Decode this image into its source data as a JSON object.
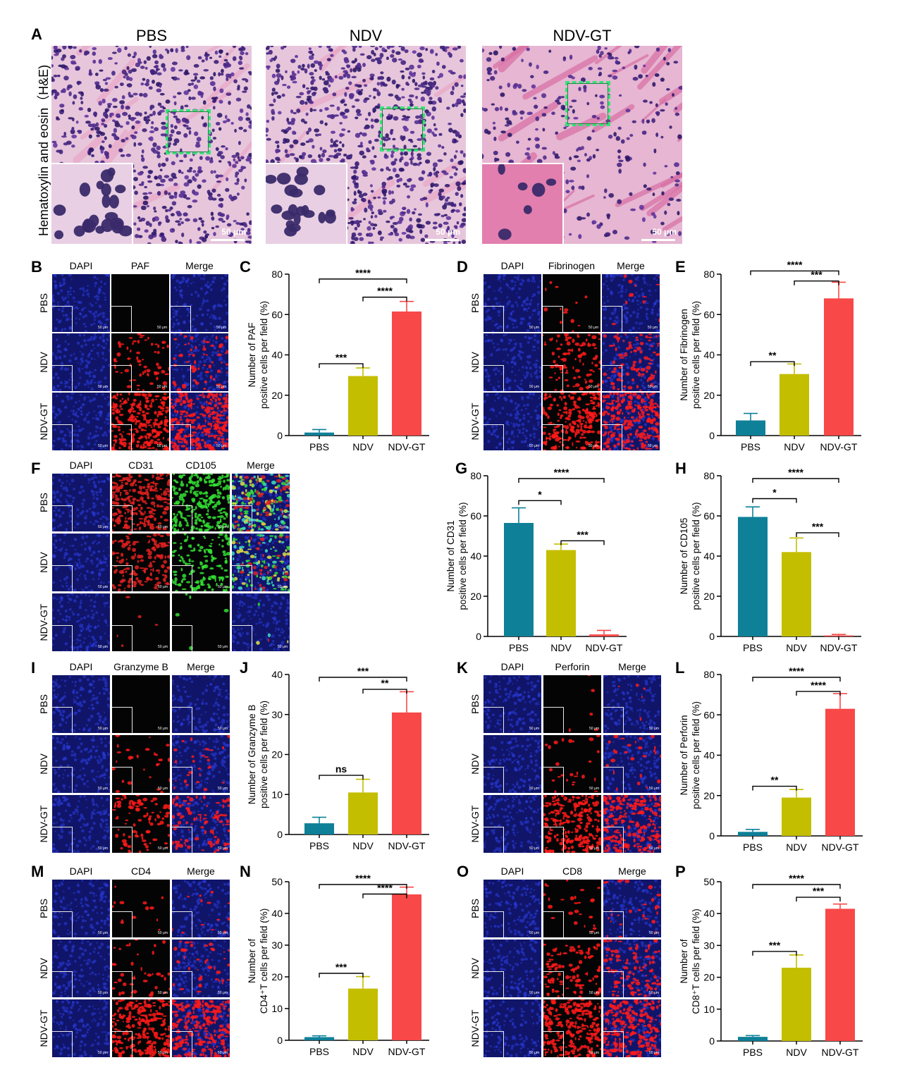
{
  "panelA": {
    "letter": "A",
    "side_label": "Hematoxylin and eosin（H&E)",
    "titles": [
      "PBS",
      "NDV",
      "NDV-GT"
    ],
    "scale_label": "50 μm"
  },
  "fluor_panels": [
    {
      "letter": "B",
      "cols": [
        "DAPI",
        "PAF",
        "Merge"
      ],
      "rows": [
        "PBS",
        "NDV",
        "NDV-GT"
      ],
      "signal": "red",
      "levels": [
        0.0,
        0.25,
        0.95
      ],
      "scale": "50 μm"
    },
    {
      "letter": "D",
      "cols": [
        "DAPI",
        "Fibrinogen",
        "Merge"
      ],
      "rows": [
        "PBS",
        "NDV",
        "NDV-GT"
      ],
      "signal": "red",
      "levels": [
        0.05,
        0.35,
        0.85
      ],
      "scale": "50 μm"
    },
    {
      "letter": "F",
      "cols": [
        "DAPI",
        "CD31",
        "CD105",
        "Merge"
      ],
      "rows": [
        "PBS",
        "NDV",
        "NDV-GT"
      ],
      "signal": "redgreen",
      "levels": [
        0.9,
        0.55,
        0.02
      ],
      "scale": "50 μm"
    },
    {
      "letter": "I",
      "cols": [
        "DAPI",
        "Granzyme B",
        "Merge"
      ],
      "rows": [
        "PBS",
        "NDV",
        "NDV-GT"
      ],
      "signal": "red",
      "levels": [
        0.0,
        0.1,
        0.35
      ],
      "scale": "50 μm"
    },
    {
      "letter": "K",
      "cols": [
        "DAPI",
        "Perforin",
        "Merge"
      ],
      "rows": [
        "PBS",
        "NDV",
        "NDV-GT"
      ],
      "signal": "red",
      "levels": [
        0.02,
        0.1,
        0.85
      ],
      "scale": "50 μm"
    },
    {
      "letter": "M",
      "cols": [
        "DAPI",
        "CD4",
        "Merge"
      ],
      "rows": [
        "PBS",
        "NDV",
        "NDV-GT"
      ],
      "signal": "red",
      "levels": [
        0.05,
        0.15,
        0.9
      ],
      "scale": "50 μm"
    },
    {
      "letter": "O",
      "cols": [
        "DAPI",
        "CD8",
        "Merge"
      ],
      "rows": [
        "PBS",
        "NDV",
        "NDV-GT"
      ],
      "signal": "red",
      "levels": [
        0.1,
        0.4,
        0.85
      ],
      "scale": "50 μm"
    }
  ],
  "colors": {
    "PBS": "#0e8098",
    "NDV": "#c4be00",
    "NDV-GT": "#f84848"
  },
  "chart_data": [
    {
      "letter": "C",
      "type": "bar",
      "categories": [
        "PBS",
        "NDV",
        "NDV-GT"
      ],
      "values": [
        1.5,
        29.5,
        61.5
      ],
      "errors": [
        1.5,
        4,
        5
      ],
      "ylim": [
        0,
        80
      ],
      "yticks": [
        0,
        20,
        40,
        60,
        80
      ],
      "ylabel": [
        "Number of PAF",
        "positive cells per field (%)"
      ],
      "sig": [
        {
          "a": 0,
          "b": 2,
          "label": "****",
          "y": 79
        },
        {
          "a": 1,
          "b": 2,
          "label": "****",
          "y": 70
        },
        {
          "a": 0,
          "b": 1,
          "label": "***",
          "y": 37
        }
      ]
    },
    {
      "letter": "E",
      "type": "bar",
      "categories": [
        "PBS",
        "NDV",
        "NDV-GT"
      ],
      "values": [
        7.5,
        30.5,
        68
      ],
      "errors": [
        3.5,
        5,
        8
      ],
      "ylim": [
        0,
        80
      ],
      "yticks": [
        0,
        20,
        40,
        60,
        80
      ],
      "ylabel": [
        "Number of Fibrinogen",
        "positive cells per field (%)"
      ],
      "sig": [
        {
          "a": 0,
          "b": 2,
          "label": "****",
          "y": 83
        },
        {
          "a": 1,
          "b": 2,
          "label": "***",
          "y": 78
        },
        {
          "a": 0,
          "b": 1,
          "label": "**",
          "y": 38
        }
      ]
    },
    {
      "letter": "G",
      "type": "bar",
      "categories": [
        "PBS",
        "NDV",
        "NDV-GT"
      ],
      "values": [
        56.5,
        43,
        1
      ],
      "errors": [
        7.5,
        3,
        2
      ],
      "ylim": [
        0,
        80
      ],
      "yticks": [
        0,
        20,
        40,
        60,
        80
      ],
      "ylabel": [
        "Number of CD31",
        "positive cells per field (%)"
      ],
      "sig": [
        {
          "a": 0,
          "b": 2,
          "label": "****",
          "y": 80
        },
        {
          "a": 0,
          "b": 1,
          "label": "*",
          "y": 69
        },
        {
          "a": 1,
          "b": 2,
          "label": "***",
          "y": 49
        }
      ]
    },
    {
      "letter": "H",
      "type": "bar",
      "categories": [
        "PBS",
        "NDV",
        "NDV-GT"
      ],
      "values": [
        59.5,
        42,
        0.5
      ],
      "errors": [
        5,
        7,
        0.5
      ],
      "ylim": [
        0,
        80
      ],
      "yticks": [
        0,
        20,
        40,
        60,
        80
      ],
      "ylabel": [
        "Number of CD105",
        "positive cells per field (%)"
      ],
      "sig": [
        {
          "a": 0,
          "b": 2,
          "label": "****",
          "y": 80
        },
        {
          "a": 0,
          "b": 1,
          "label": "*",
          "y": 70
        },
        {
          "a": 1,
          "b": 2,
          "label": "***",
          "y": 53
        }
      ]
    },
    {
      "letter": "J",
      "type": "bar",
      "categories": [
        "PBS",
        "NDV",
        "NDV-GT"
      ],
      "values": [
        2.8,
        10.5,
        30.5
      ],
      "errors": [
        1.5,
        3.3,
        5.2
      ],
      "ylim": [
        0,
        40
      ],
      "yticks": [
        0,
        10,
        20,
        30,
        40
      ],
      "ylabel": [
        "Number of Granzyme B",
        "positive cells per field (%)"
      ],
      "sig": [
        {
          "a": 0,
          "b": 2,
          "label": "***",
          "y": 40
        },
        {
          "a": 1,
          "b": 2,
          "label": "**",
          "y": 37
        },
        {
          "a": 0,
          "b": 1,
          "label": "ns",
          "y": 15.5
        }
      ]
    },
    {
      "letter": "L",
      "type": "bar",
      "categories": [
        "PBS",
        "NDV",
        "NDV-GT"
      ],
      "values": [
        2,
        19,
        63
      ],
      "errors": [
        1.2,
        4,
        7.5
      ],
      "ylim": [
        0,
        80
      ],
      "yticks": [
        0,
        20,
        40,
        60,
        80
      ],
      "ylabel": [
        "Number of  Perforin",
        "positive cells per field (%)"
      ],
      "sig": [
        {
          "a": 0,
          "b": 2,
          "label": "****",
          "y": 80
        },
        {
          "a": 1,
          "b": 2,
          "label": "****",
          "y": 73
        },
        {
          "a": 0,
          "b": 1,
          "label": "**",
          "y": 26
        }
      ]
    },
    {
      "letter": "N",
      "type": "bar",
      "categories": [
        "PBS",
        "NDV",
        "NDV-GT"
      ],
      "values": [
        1,
        16.3,
        46
      ],
      "errors": [
        0.4,
        3.8,
        2.3
      ],
      "ylim": [
        0,
        50
      ],
      "yticks": [
        0,
        10,
        20,
        30,
        40,
        50
      ],
      "ylabel": [
        "Number of",
        "CD4⁺T cells per field (%)"
      ],
      "sig": [
        {
          "a": 0,
          "b": 2,
          "label": "****",
          "y": 50
        },
        {
          "a": 1,
          "b": 2,
          "label": "****",
          "y": 47
        },
        {
          "a": 0,
          "b": 1,
          "label": "***",
          "y": 22
        }
      ]
    },
    {
      "letter": "P",
      "type": "bar",
      "categories": [
        "PBS",
        "NDV",
        "NDV-GT"
      ],
      "values": [
        1.3,
        23,
        41.5
      ],
      "errors": [
        0.4,
        4,
        1.5
      ],
      "ylim": [
        0,
        50
      ],
      "yticks": [
        0,
        10,
        20,
        30,
        40,
        50
      ],
      "ylabel": [
        "Number of",
        "CD8⁺T cells per field (%)"
      ],
      "sig": [
        {
          "a": 0,
          "b": 2,
          "label": "****",
          "y": 50
        },
        {
          "a": 1,
          "b": 2,
          "label": "***",
          "y": 46
        },
        {
          "a": 0,
          "b": 1,
          "label": "***",
          "y": 29
        }
      ]
    }
  ]
}
